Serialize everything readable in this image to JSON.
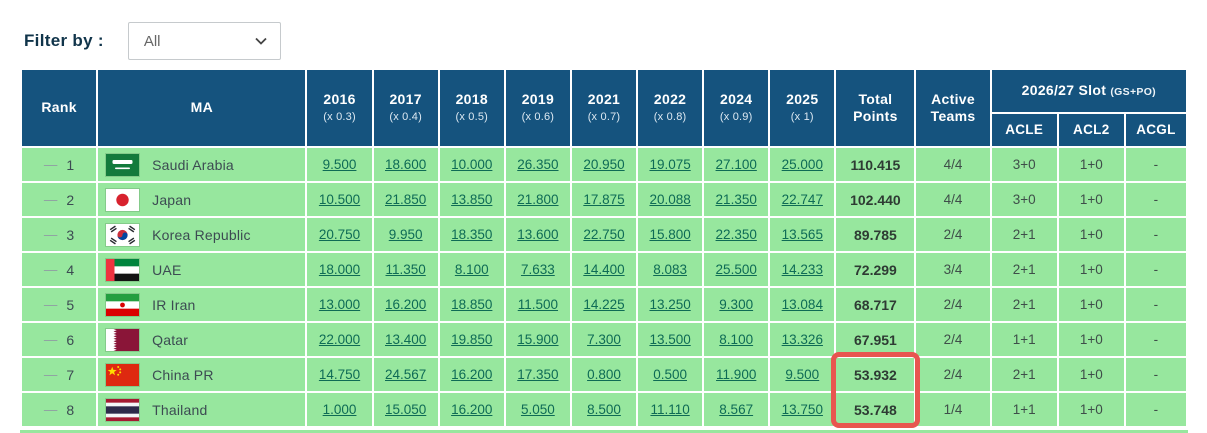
{
  "filter": {
    "label": "Filter by :",
    "selected_option": "All"
  },
  "colors": {
    "header_bg": "#15537e",
    "row_bg": "#97e79e",
    "score_link": "#0e6b55",
    "highlight_box": "#e8564f"
  },
  "icons": {
    "dropdown": "chevron-down-icon",
    "rank_movement": "dash-icon"
  },
  "table": {
    "header": {
      "rank": "Rank",
      "ma": "MA",
      "years": [
        {
          "year": "2016",
          "multiplier": "(x 0.3)"
        },
        {
          "year": "2017",
          "multiplier": "(x 0.4)"
        },
        {
          "year": "2018",
          "multiplier": "(x 0.5)"
        },
        {
          "year": "2019",
          "multiplier": "(x 0.6)"
        },
        {
          "year": "2021",
          "multiplier": "(x 0.7)"
        },
        {
          "year": "2022",
          "multiplier": "(x 0.8)"
        },
        {
          "year": "2024",
          "multiplier": "(x 0.9)"
        },
        {
          "year": "2025",
          "multiplier": "(x 1)"
        }
      ],
      "total_points": "Total Points",
      "active_teams": "Active Teams",
      "slot_group": "2026/27 Slot",
      "slot_group_note": "(GS+PO)",
      "slot_columns": [
        "ACLE",
        "ACL2",
        "ACGL"
      ]
    },
    "rows": [
      {
        "movement": "—",
        "rank": "1",
        "flag": "saudi-arabia",
        "country": "Saudi Arabia",
        "scores": [
          "9.500",
          "18.600",
          "10.000",
          "26.350",
          "20.950",
          "19.075",
          "27.100",
          "25.000"
        ],
        "total": "110.415",
        "active": "4/4",
        "acle": "3+0",
        "acl2": "1+0",
        "acgl": "-",
        "highlighted": false
      },
      {
        "movement": "—",
        "rank": "2",
        "flag": "japan",
        "country": "Japan",
        "scores": [
          "10.500",
          "21.850",
          "13.850",
          "21.800",
          "17.875",
          "20.088",
          "21.350",
          "22.747"
        ],
        "total": "102.440",
        "active": "4/4",
        "acle": "3+0",
        "acl2": "1+0",
        "acgl": "-",
        "highlighted": false
      },
      {
        "movement": "—",
        "rank": "3",
        "flag": "korea-republic",
        "country": "Korea Republic",
        "scores": [
          "20.750",
          "9.950",
          "18.350",
          "13.600",
          "22.750",
          "15.800",
          "22.350",
          "13.565"
        ],
        "total": "89.785",
        "active": "2/4",
        "acle": "2+1",
        "acl2": "1+0",
        "acgl": "-",
        "highlighted": false
      },
      {
        "movement": "—",
        "rank": "4",
        "flag": "uae",
        "country": "UAE",
        "scores": [
          "18.000",
          "11.350",
          "8.100",
          "7.633",
          "14.400",
          "8.083",
          "25.500",
          "14.233"
        ],
        "total": "72.299",
        "active": "3/4",
        "acle": "2+1",
        "acl2": "1+0",
        "acgl": "-",
        "highlighted": false
      },
      {
        "movement": "—",
        "rank": "5",
        "flag": "ir-iran",
        "country": "IR Iran",
        "scores": [
          "13.000",
          "16.200",
          "18.850",
          "11.500",
          "14.225",
          "13.250",
          "9.300",
          "13.084"
        ],
        "total": "68.717",
        "active": "2/4",
        "acle": "2+1",
        "acl2": "1+0",
        "acgl": "-",
        "highlighted": false
      },
      {
        "movement": "—",
        "rank": "6",
        "flag": "qatar",
        "country": "Qatar",
        "scores": [
          "22.000",
          "13.400",
          "19.850",
          "15.900",
          "7.300",
          "13.500",
          "8.100",
          "13.326"
        ],
        "total": "67.951",
        "active": "2/4",
        "acle": "1+1",
        "acl2": "1+0",
        "acgl": "-",
        "highlighted": false
      },
      {
        "movement": "—",
        "rank": "7",
        "flag": "china-pr",
        "country": "China PR",
        "scores": [
          "14.750",
          "24.567",
          "16.200",
          "17.350",
          "0.800",
          "0.500",
          "11.900",
          "9.500"
        ],
        "total": "53.932",
        "active": "2/4",
        "acle": "2+1",
        "acl2": "1+0",
        "acgl": "-",
        "highlighted": true
      },
      {
        "movement": "—",
        "rank": "8",
        "flag": "thailand",
        "country": "Thailand",
        "scores": [
          "1.000",
          "15.050",
          "16.200",
          "5.050",
          "8.500",
          "11.110",
          "8.567",
          "13.750"
        ],
        "total": "53.748",
        "active": "1/4",
        "acle": "1+1",
        "acl2": "1+0",
        "acgl": "-",
        "highlighted": true
      }
    ]
  }
}
